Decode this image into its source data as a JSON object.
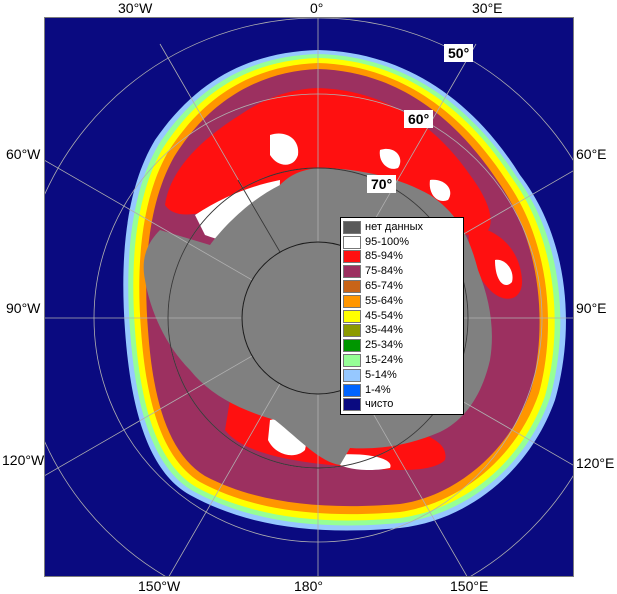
{
  "map": {
    "colors": {
      "ocean": "#0a0a80",
      "land": "#808080",
      "frame": "#7d7d7d",
      "grid": "#b0b0b0"
    },
    "lon_labels": {
      "top_30w": "30°W",
      "top_0": "0°",
      "top_30e": "30°E",
      "left_60w": "60°W",
      "left_90w": "90°W",
      "left_120w": "120°W",
      "right_60e": "60°E",
      "right_90e": "90°E",
      "right_120e": "120°E",
      "bottom_150w": "150°W",
      "bottom_180": "180°",
      "bottom_150e": "150°E"
    },
    "lat_labels": {
      "lat50": "50°",
      "lat60": "60°",
      "lat70": "70°"
    }
  },
  "legend": {
    "items": [
      {
        "label": "нет данных",
        "color": "#595959"
      },
      {
        "label": "95-100%",
        "color": "#ffffff"
      },
      {
        "label": "85-94%",
        "color": "#ff1010"
      },
      {
        "label": "75-84%",
        "color": "#9c3060"
      },
      {
        "label": "65-74%",
        "color": "#c86418"
      },
      {
        "label": "55-64%",
        "color": "#ff9600"
      },
      {
        "label": "45-54%",
        "color": "#ffff00"
      },
      {
        "label": "35-44%",
        "color": "#8c9a00"
      },
      {
        "label": "25-34%",
        "color": "#009600"
      },
      {
        "label": "15-24%",
        "color": "#96ff96"
      },
      {
        "label": "5-14%",
        "color": "#96c8ff"
      },
      {
        "label": "1-4%",
        "color": "#0064ff"
      },
      {
        "label": "чисто",
        "color": "#0a0a80"
      }
    ]
  }
}
